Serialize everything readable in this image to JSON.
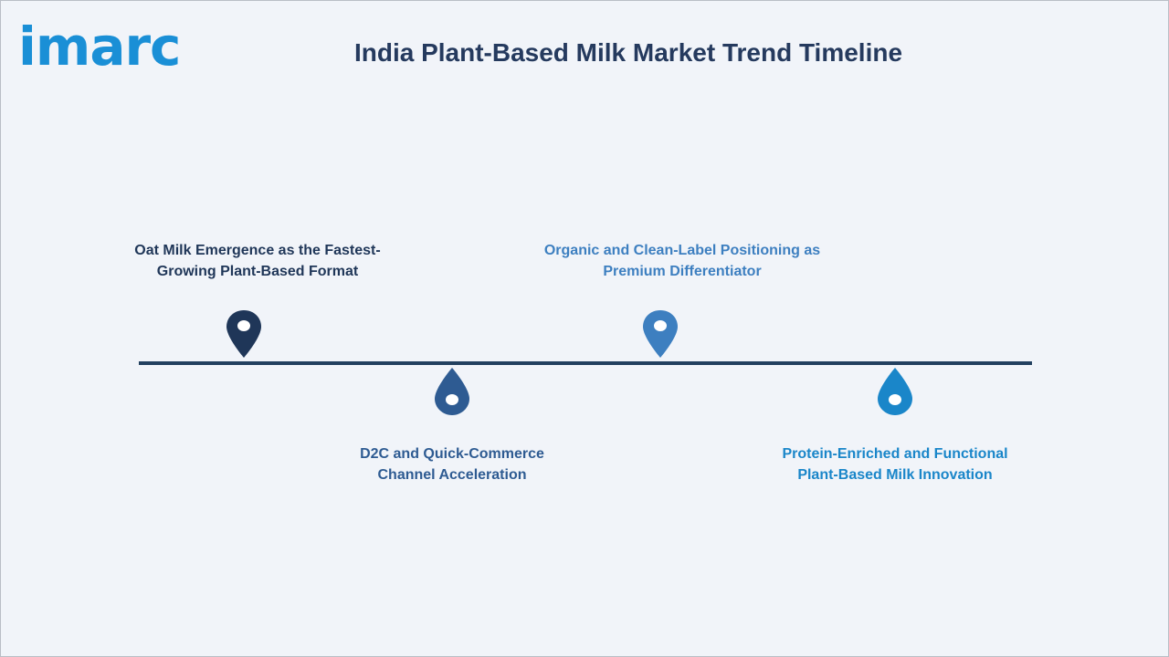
{
  "header": {
    "logo_text": "imarc",
    "title": "India Plant-Based Milk Market Trend Timeline"
  },
  "timeline": {
    "milestones": [
      {
        "line1": "Oat Milk Emergence as the Fastest-",
        "line2": "Growing Plant-Based Format",
        "color": "#1f3658",
        "position": "above"
      },
      {
        "line1": "D2C and Quick-Commerce",
        "line2": "Channel Acceleration",
        "color": "#2e5b92",
        "position": "below"
      },
      {
        "line1": "Organic and Clean-Label Positioning as",
        "line2": "Premium Differentiator",
        "color": "#3d7fc0",
        "position": "above"
      },
      {
        "line1": "Protein-Enriched and Functional",
        "line2": "Plant-Based Milk Innovation",
        "color": "#1a86c9",
        "position": "below"
      }
    ]
  },
  "colors": {
    "background": "#f1f4f9",
    "title": "#253a5e",
    "logo": "#1a8fd6",
    "line": "#22405f"
  }
}
